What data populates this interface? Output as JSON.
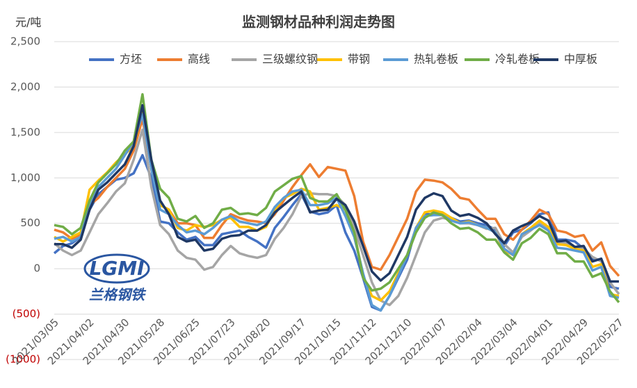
{
  "chart_data": {
    "type": "line",
    "title": "监测钢材品种利润走势图",
    "y_unit": "元/吨",
    "watermark": {
      "logo": "LGMI",
      "name": "兰格钢铁"
    },
    "categories": [
      "2021/03/05",
      null,
      null,
      null,
      "2021/04/02",
      null,
      null,
      null,
      "2021/04/30",
      null,
      null,
      null,
      "2021/05/28",
      null,
      null,
      null,
      "2021/06/25",
      null,
      null,
      null,
      "2021/07/23",
      null,
      null,
      null,
      "2021/08/20",
      null,
      null,
      null,
      "2021/09/17",
      null,
      null,
      null,
      "2021/10/15",
      null,
      null,
      null,
      "2021/11/12",
      null,
      null,
      null,
      "2021/12/10",
      null,
      null,
      null,
      "2022/01/07",
      null,
      null,
      null,
      "2022/02/04",
      null,
      null,
      null,
      "2022/03/04",
      null,
      null,
      null,
      "2022/04/01",
      null,
      null,
      null,
      "2022/04/29",
      null,
      null,
      null,
      "2022/05/27"
    ],
    "ylim": [
      -1000,
      2500
    ],
    "yticks": [
      {
        "value": -1000,
        "label": "(1000)"
      },
      {
        "value": -500,
        "label": "(500)"
      },
      0,
      500,
      {
        "value": 1000,
        "label": "1,000"
      },
      {
        "value": 1500,
        "label": "1,500"
      },
      {
        "value": 2000,
        "label": "2,000"
      },
      {
        "value": 2500,
        "label": "2,500"
      }
    ],
    "grid": true,
    "legend": "top",
    "series": [
      {
        "name": "方坯",
        "color": "#4472c4",
        "values": [
          170,
          250,
          280,
          350,
          650,
          820,
          900,
          980,
          1000,
          1050,
          1250,
          1000,
          520,
          500,
          400,
          320,
          350,
          260,
          260,
          380,
          400,
          420,
          350,
          300,
          230,
          450,
          570,
          700,
          820,
          630,
          600,
          620,
          700,
          400,
          200,
          -100,
          -420,
          -460,
          -300,
          -100,
          100,
          450,
          600,
          600,
          610,
          560,
          520,
          530,
          500,
          480,
          430,
          250,
          400,
          430,
          500,
          600,
          620,
          320,
          320,
          300,
          220,
          100,
          100,
          -200,
          -220
        ]
      },
      {
        "name": "高线",
        "color": "#ed7d31",
        "values": [
          430,
          400,
          330,
          380,
          700,
          780,
          900,
          1000,
          1100,
          1300,
          1650,
          1100,
          700,
          650,
          500,
          500,
          480,
          340,
          340,
          480,
          600,
          560,
          530,
          520,
          500,
          600,
          750,
          900,
          1030,
          1150,
          1010,
          1120,
          1100,
          1080,
          800,
          300,
          20,
          -10,
          150,
          350,
          550,
          850,
          980,
          970,
          950,
          880,
          780,
          760,
          650,
          550,
          550,
          380,
          320,
          430,
          530,
          650,
          600,
          420,
          400,
          350,
          370,
          200,
          290,
          30,
          -80
        ]
      },
      {
        "name": "三级螺纹钢",
        "color": "#a5a5a5",
        "values": [
          280,
          200,
          150,
          200,
          400,
          600,
          720,
          850,
          940,
          1200,
          1530,
          900,
          480,
          380,
          200,
          120,
          100,
          -10,
          20,
          150,
          250,
          170,
          140,
          120,
          150,
          330,
          450,
          600,
          800,
          830,
          820,
          820,
          800,
          700,
          450,
          150,
          -150,
          -350,
          -400,
          -300,
          -100,
          150,
          400,
          530,
          560,
          540,
          500,
          500,
          480,
          440,
          450,
          270,
          180,
          350,
          420,
          500,
          430,
          280,
          280,
          230,
          220,
          130,
          80,
          -150,
          -280
        ]
      },
      {
        "name": "带钢",
        "color": "#ffc000",
        "values": [
          350,
          300,
          350,
          400,
          870,
          970,
          1060,
          1170,
          1260,
          1350,
          1750,
          1100,
          700,
          650,
          450,
          420,
          480,
          460,
          480,
          540,
          560,
          460,
          460,
          420,
          460,
          650,
          780,
          820,
          880,
          850,
          650,
          670,
          700,
          650,
          400,
          -80,
          -300,
          -350,
          -250,
          -50,
          150,
          450,
          620,
          640,
          620,
          560,
          500,
          520,
          480,
          450,
          400,
          200,
          150,
          380,
          450,
          530,
          460,
          270,
          260,
          220,
          200,
          20,
          50,
          -280,
          -300
        ]
      },
      {
        "name": "热轧卷板",
        "color": "#5b9bd5",
        "values": [
          330,
          350,
          300,
          350,
          700,
          900,
          1000,
          1100,
          1250,
          1400,
          1700,
          1100,
          650,
          600,
          480,
          400,
          420,
          380,
          450,
          540,
          580,
          520,
          500,
          480,
          520,
          680,
          780,
          850,
          870,
          700,
          700,
          720,
          780,
          580,
          350,
          -50,
          -400,
          -460,
          -300,
          -80,
          150,
          450,
          580,
          590,
          590,
          530,
          500,
          510,
          480,
          450,
          400,
          220,
          150,
          380,
          430,
          480,
          420,
          230,
          220,
          200,
          180,
          -20,
          20,
          -300,
          -320
        ]
      },
      {
        "name": "冷轧卷板",
        "color": "#70ad47",
        "values": [
          480,
          460,
          380,
          450,
          750,
          950,
          1050,
          1150,
          1300,
          1400,
          1920,
          1200,
          880,
          780,
          550,
          520,
          580,
          450,
          500,
          650,
          670,
          600,
          610,
          590,
          670,
          850,
          920,
          990,
          1020,
          780,
          740,
          740,
          820,
          650,
          400,
          -100,
          -240,
          -220,
          -150,
          0,
          150,
          400,
          560,
          620,
          590,
          500,
          440,
          450,
          400,
          320,
          320,
          180,
          100,
          280,
          340,
          440,
          380,
          170,
          170,
          80,
          80,
          -90,
          -50,
          -250,
          -370
        ]
      },
      {
        "name": "中厚板",
        "color": "#1f3864",
        "values": [
          270,
          270,
          230,
          320,
          650,
          870,
          950,
          1050,
          1150,
          1350,
          1800,
          1200,
          750,
          600,
          350,
          300,
          320,
          200,
          220,
          330,
          360,
          370,
          420,
          420,
          480,
          620,
          700,
          780,
          850,
          620,
          640,
          650,
          770,
          700,
          520,
          250,
          -30,
          -130,
          -50,
          150,
          350,
          650,
          780,
          830,
          800,
          640,
          580,
          600,
          560,
          500,
          380,
          280,
          420,
          470,
          510,
          580,
          530,
          300,
          310,
          240,
          250,
          80,
          110,
          -140,
          -140
        ]
      }
    ]
  }
}
